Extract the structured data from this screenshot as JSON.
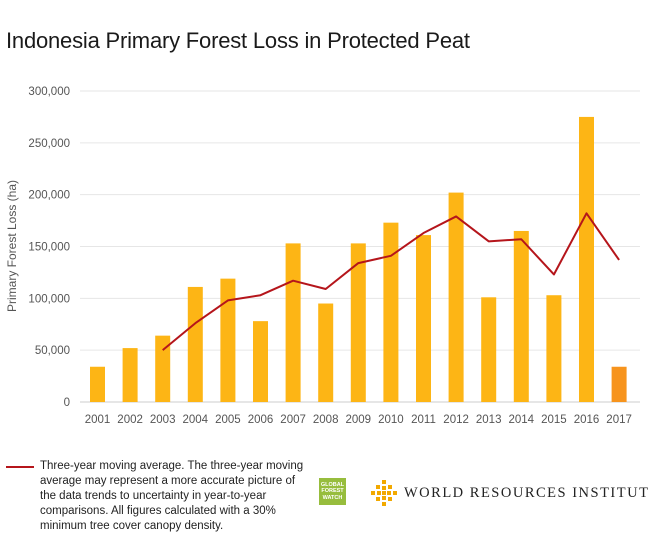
{
  "title": "Indonesia Primary Forest Loss in Protected Peat",
  "colors": {
    "bar": "#fdb515",
    "highlight_bar": "#f7941d",
    "line": "#b5151b",
    "grid": "#e6e6e6",
    "axis_text": "#555555",
    "gfw_green": "#97bd3d",
    "wri_gold": "#f2a900"
  },
  "chart_data": {
    "type": "bar",
    "ylabel": "Primary Forest Loss (ha)",
    "xlabel": "",
    "ylim": [
      0,
      300000
    ],
    "yticks": [
      0,
      50000,
      100000,
      150000,
      200000,
      250000,
      300000
    ],
    "ytick_labels": [
      "0",
      "50,000",
      "100,000",
      "150,000",
      "200,000",
      "250,000",
      "300,000"
    ],
    "grid": true,
    "categories": [
      "2001",
      "2002",
      "2003",
      "2004",
      "2005",
      "2006",
      "2007",
      "2008",
      "2009",
      "2010",
      "2011",
      "2012",
      "2013",
      "2014",
      "2015",
      "2016",
      "2017"
    ],
    "values": [
      34000,
      52000,
      64000,
      111000,
      119000,
      78000,
      153000,
      95000,
      153000,
      173000,
      161000,
      202000,
      101000,
      165000,
      103000,
      275000,
      34000
    ],
    "highlight_index": 16,
    "line": {
      "name": "Three-year moving average",
      "values": [
        null,
        null,
        50000,
        76000,
        98000,
        103000,
        117000,
        109000,
        134000,
        141000,
        163000,
        179000,
        155000,
        157000,
        123000,
        182000,
        137000
      ]
    }
  },
  "legend": {
    "text": "Three-year moving average. The three-year moving average may represent a more accurate picture of the data trends to uncertainty in year-to-year comparisons. All figures calculated with a 30% minimum tree cover canopy density."
  },
  "logos": {
    "gfw_line1": "GLOBAL",
    "gfw_line2": "FOREST",
    "gfw_line3": "WATCH",
    "wri_name": "WORLD RESOURCES INSTITUTE"
  }
}
